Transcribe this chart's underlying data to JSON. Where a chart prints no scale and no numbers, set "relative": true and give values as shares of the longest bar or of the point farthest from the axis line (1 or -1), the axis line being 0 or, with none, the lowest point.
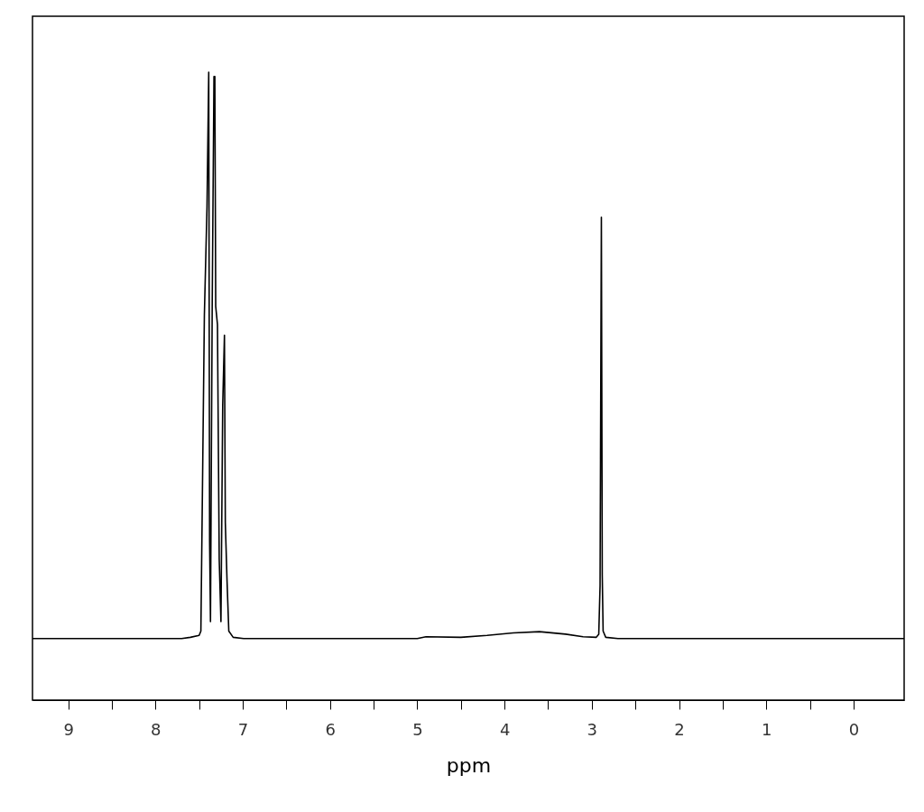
{
  "chart_data": {
    "type": "line",
    "xlabel": "ppm",
    "relative": true,
    "grid": false,
    "marker": "none",
    "line_style": "solid",
    "tick_labels": "x",
    "xlim": [
      9.41,
      -0.58
    ],
    "xticks": [
      9,
      {
        "value": 8.5,
        "label": null
      },
      8,
      {
        "value": 7.5,
        "label": null
      },
      7,
      {
        "value": 6.5,
        "label": null
      },
      6,
      {
        "value": 5.5,
        "label": null
      },
      5,
      {
        "value": 4.5,
        "label": null
      },
      4,
      {
        "value": 3.5,
        "label": null
      },
      3,
      {
        "value": 2.5,
        "label": null
      },
      2,
      {
        "value": 1.5,
        "label": null
      },
      1,
      {
        "value": 0.5,
        "label": null
      },
      0
    ],
    "series": [
      {
        "color": "#000000",
        "x": [
          9.41,
          7.7,
          7.6,
          7.5,
          7.48,
          7.44,
          7.41,
          7.39,
          7.38,
          7.37,
          7.35,
          7.33,
          7.32,
          7.31,
          7.29,
          7.27,
          7.25,
          7.23,
          7.21,
          7.2,
          7.18,
          7.16,
          7.11,
          6.99,
          5.0,
          4.9,
          4.5,
          4.2,
          3.9,
          3.6,
          3.3,
          3.1,
          2.95,
          2.92,
          2.905,
          2.89,
          2.88,
          2.87,
          2.84,
          2.7,
          -0.58
        ],
        "values": [
          0.098,
          0.098,
          0.1,
          0.103,
          0.11,
          0.613,
          0.785,
          1.0,
          0.254,
          0.125,
          0.634,
          0.993,
          0.993,
          0.627,
          0.598,
          0.225,
          0.125,
          0.469,
          0.581,
          0.283,
          0.189,
          0.11,
          0.1,
          0.098,
          0.098,
          0.101,
          0.1,
          0.103,
          0.107,
          0.109,
          0.105,
          0.101,
          0.1,
          0.105,
          0.182,
          0.769,
          0.2,
          0.11,
          0.1,
          0.098,
          0.098
        ]
      }
    ]
  }
}
